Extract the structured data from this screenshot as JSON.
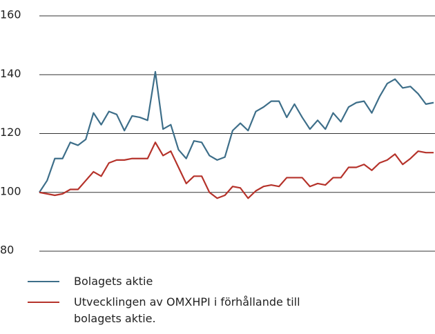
{
  "chart_data": {
    "type": "line",
    "categories": [
      null,
      null,
      null,
      null,
      null,
      null,
      null,
      null,
      null,
      null,
      null,
      null,
      null,
      null,
      null,
      null,
      null,
      null,
      null,
      null,
      null,
      null,
      null,
      null,
      null,
      null,
      null,
      null,
      null,
      null,
      null,
      null,
      null,
      null,
      null,
      null,
      null,
      null,
      null,
      null,
      null,
      null,
      null,
      null,
      null,
      null,
      null,
      null,
      null,
      null,
      null,
      null
    ],
    "series": [
      {
        "name": "Bolagets aktie",
        "color": "#3d6e89",
        "values": [
          100,
          104,
          111.5,
          111.5,
          117,
          116,
          118,
          127,
          123,
          127.5,
          126.5,
          121,
          126,
          125.5,
          124.5,
          141,
          121.5,
          123,
          114.5,
          111.5,
          117.5,
          117,
          112.5,
          111,
          112,
          121,
          123.5,
          121,
          127.5,
          129,
          131,
          131,
          125.5,
          130,
          125.5,
          121.5,
          124.5,
          121.5,
          127,
          124,
          129,
          130.5,
          131,
          127,
          132.5,
          137,
          138.5,
          135.5,
          136,
          133.5,
          130,
          130.5
        ]
      },
      {
        "name": "Utvecklingen av OMXHPI i förhållande till bolagets aktie.",
        "color": "#b5322a",
        "values": [
          100,
          99.5,
          99,
          99.5,
          101,
          101,
          104,
          107,
          105.5,
          110,
          111,
          111,
          111.5,
          111.5,
          111.5,
          117,
          112.5,
          114,
          108.5,
          103,
          105.5,
          105.5,
          100,
          98,
          99,
          102,
          101.5,
          98,
          100.5,
          102,
          102.5,
          102,
          105,
          105,
          105,
          102,
          103,
          102.5,
          105,
          105,
          108.5,
          108.5,
          109.5,
          107.5,
          110,
          111,
          113,
          109.5,
          111.5,
          114,
          113.5,
          113.5
        ]
      }
    ],
    "ylim": [
      80,
      160
    ],
    "yticks": [
      80,
      100,
      120,
      140,
      160
    ],
    "grid": true
  }
}
